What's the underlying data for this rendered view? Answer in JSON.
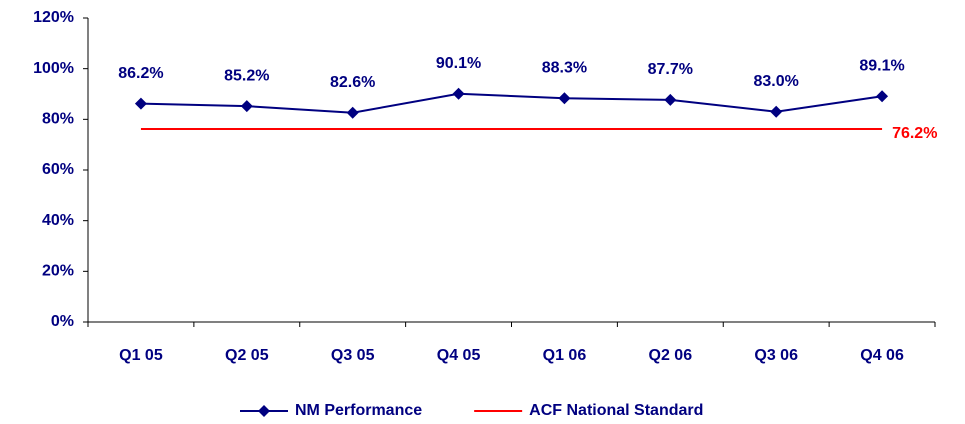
{
  "chart_data": {
    "type": "line",
    "categories": [
      "Q1 05",
      "Q2 05",
      "Q3 05",
      "Q4 05",
      "Q1 06",
      "Q2 06",
      "Q3 06",
      "Q4 06"
    ],
    "series": [
      {
        "name": "NM Performance",
        "color": "#000080",
        "marker": "diamond",
        "values": [
          86.2,
          85.2,
          82.6,
          90.1,
          88.3,
          87.7,
          83.0,
          89.1
        ],
        "value_labels": [
          "86.2%",
          "85.2%",
          "82.6%",
          "90.1%",
          "88.3%",
          "87.7%",
          "83.0%",
          "89.1%"
        ]
      },
      {
        "name": "ACF National Standard",
        "color": "#ff0000",
        "values": [
          76.2,
          76.2,
          76.2,
          76.2,
          76.2,
          76.2,
          76.2,
          76.2
        ],
        "value_labels": [
          null,
          null,
          null,
          null,
          null,
          null,
          null,
          "76.2%"
        ]
      }
    ],
    "ylim": [
      0,
      120
    ],
    "yticks": [
      {
        "value": 0,
        "label": "0%"
      },
      {
        "value": 20,
        "label": "20%"
      },
      {
        "value": 40,
        "label": "40%"
      },
      {
        "value": 60,
        "label": "60%"
      },
      {
        "value": 80,
        "label": "80%"
      },
      {
        "value": 100,
        "label": "100%"
      },
      {
        "value": 120,
        "label": "120%"
      }
    ],
    "grid": false,
    "legend": "bottom"
  }
}
